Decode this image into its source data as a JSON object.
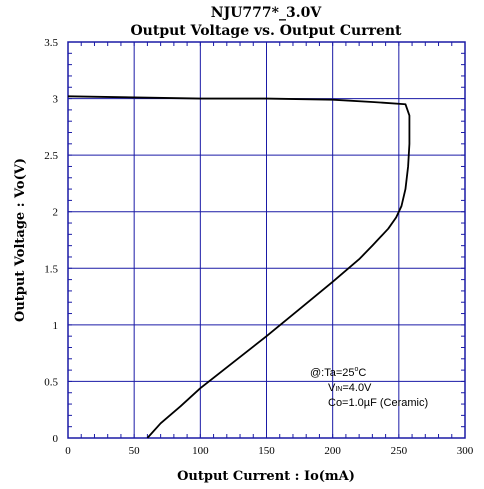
{
  "chart_data": {
    "type": "line",
    "title": "NJU777*_3.0V",
    "subtitle": "Output Voltage vs. Output Current",
    "xlabel": "Output Current : Io(mA)",
    "ylabel": "Output Voltage : Vo(V)",
    "xlim": [
      0,
      300
    ],
    "ylim": [
      0,
      3.5
    ],
    "x_ticks": [
      0,
      50,
      100,
      150,
      200,
      250,
      300
    ],
    "y_ticks": [
      0,
      0.5,
      1,
      1.5,
      2,
      2.5,
      3,
      3.5
    ],
    "x_tick_labels": [
      "0",
      "50",
      "100",
      "150",
      "200",
      "250",
      "300"
    ],
    "y_tick_labels": [
      "0",
      "0.5",
      "1",
      "1.5",
      "2",
      "2.5",
      "3",
      "3.5"
    ],
    "grid": true,
    "colors": {
      "grid": "#1a1aa6",
      "frame": "#1a1aa6",
      "line": "#000000"
    },
    "series": [
      {
        "points": [
          [
            0,
            3.02
          ],
          [
            50,
            3.01
          ],
          [
            100,
            3.0
          ],
          [
            150,
            3.0
          ],
          [
            200,
            2.99
          ],
          [
            230,
            2.97
          ],
          [
            255,
            2.95
          ],
          [
            258,
            2.85
          ],
          [
            258,
            2.6
          ],
          [
            257,
            2.4
          ],
          [
            255,
            2.2
          ],
          [
            252,
            2.05
          ],
          [
            248,
            1.95
          ],
          [
            242,
            1.85
          ],
          [
            230,
            1.7
          ],
          [
            220,
            1.58
          ],
          [
            200,
            1.38
          ],
          [
            175,
            1.14
          ],
          [
            150,
            0.9
          ],
          [
            125,
            0.67
          ],
          [
            100,
            0.44
          ],
          [
            85,
            0.28
          ],
          [
            70,
            0.13
          ],
          [
            60,
            0.0
          ]
        ]
      }
    ],
    "annotation": {
      "line1_prefix": "@:Ta=25",
      "line1_sup": "o",
      "line1_suffix": "C",
      "line2_prefix": "V",
      "line2_sub": "IN",
      "line2_suffix": "=4.0V",
      "line3": "Co=1.0µF (Ceramic)"
    }
  }
}
